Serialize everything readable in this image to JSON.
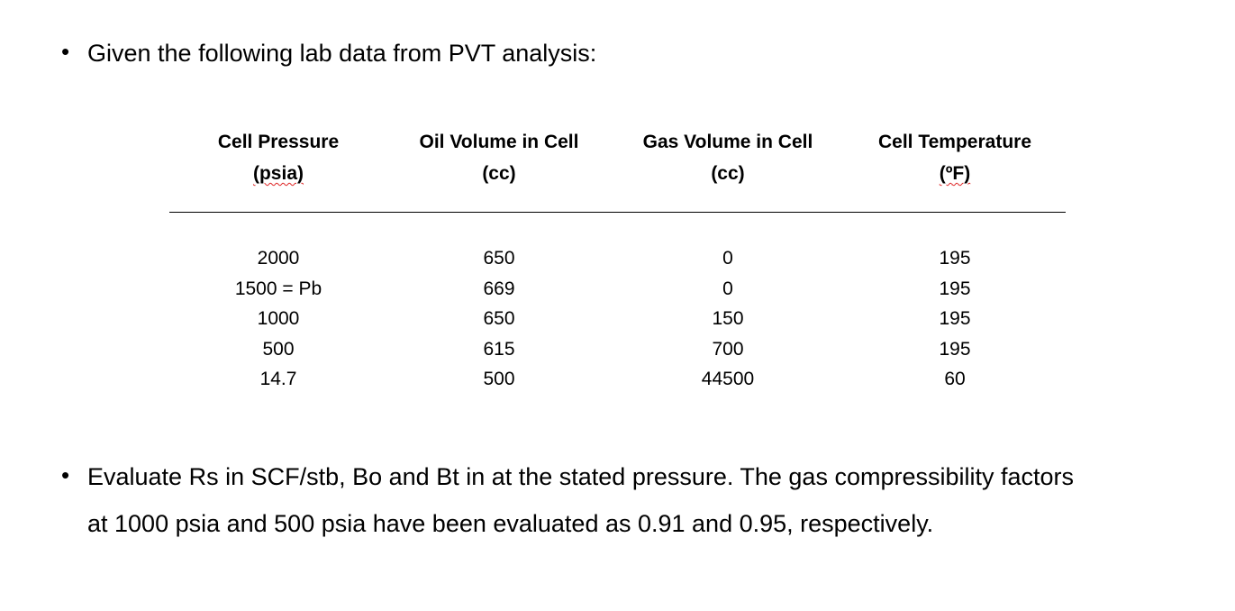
{
  "intro": {
    "bullet": "•",
    "text": "Given the following lab data from PVT analysis:"
  },
  "table": {
    "headers": [
      {
        "line1": "Cell Pressure",
        "line2": "(psia)"
      },
      {
        "line1": "Oil Volume in Cell",
        "line2": "(cc)"
      },
      {
        "line1": "Gas Volume in Cell",
        "line2": "(cc)"
      },
      {
        "line1": "Cell Temperature",
        "line2": "(ºF)"
      }
    ],
    "rows": [
      [
        "2000",
        "650",
        "0",
        "195"
      ],
      [
        "1500 = Pb",
        "669",
        "0",
        "195"
      ],
      [
        "1000",
        "650",
        "150",
        "195"
      ],
      [
        "500",
        "615",
        "700",
        "195"
      ],
      [
        "14.7",
        "500",
        "44500",
        "60"
      ]
    ]
  },
  "question": {
    "bullet": "•",
    "line1": "Evaluate Rs in SCF/stb, Bo and Bt in at the stated pressure. The gas compressibility factors",
    "line2": "at 1000 psia and 500 psia have been evaluated as 0.91 and 0.95, respectively."
  }
}
